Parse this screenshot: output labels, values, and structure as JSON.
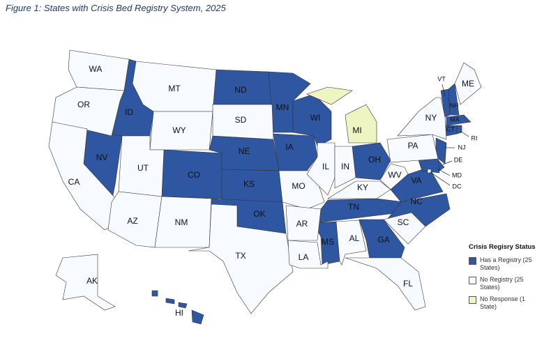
{
  "title": "Figure 1: States with Crisis Bed Registry System, 2025",
  "legend": {
    "title": "Crisis Regisry Status",
    "items": [
      {
        "label": "Has a Registry (25 States)",
        "color": "#2f56a0",
        "states": [
          "ID",
          "NV",
          "CO",
          "ND",
          "NE",
          "KS",
          "OK",
          "MN",
          "IA",
          "WI",
          "OH",
          "TN",
          "MS",
          "GA",
          "NC",
          "VA",
          "NJ",
          "DE",
          "MD",
          "VT",
          "NH",
          "MA",
          "CT",
          "RI",
          "HI"
        ]
      },
      {
        "label": "No Registry (25 States)",
        "color": "#f7fafe",
        "states": [
          "WA",
          "OR",
          "CA",
          "AK",
          "MT",
          "WY",
          "UT",
          "AZ",
          "NM",
          "SD",
          "TX",
          "MO",
          "AR",
          "LA",
          "IL",
          "IN",
          "KY",
          "AL",
          "SC",
          "FL",
          "WV",
          "PA",
          "NY",
          "ME",
          "DC"
        ]
      },
      {
        "label": "No Response (1 State)",
        "color": "#eef4c2",
        "states": [
          "MI"
        ]
      }
    ]
  }
}
